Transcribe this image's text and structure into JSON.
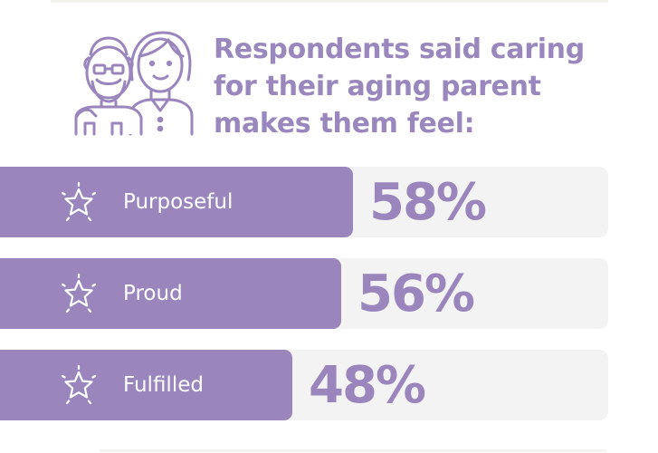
{
  "colors": {
    "accent": "#9a86bd",
    "track": "#f3f3f3",
    "label_text": "#ffffff"
  },
  "header": {
    "illustration_icon": "elderly-parent-and-adult-child-icon",
    "title_lines": [
      "Respondents said caring",
      "for their aging parent",
      "makes them feel:"
    ]
  },
  "chart_data": {
    "type": "bar",
    "orientation": "horizontal",
    "categories": [
      "Purposeful",
      "Proud",
      "Fulfilled"
    ],
    "values": [
      58,
      56,
      48
    ],
    "value_labels": [
      "58%",
      "56%",
      "48%"
    ],
    "unit": "%",
    "category_icon": "star-icon",
    "title": "Respondents said caring for their aging parent makes them feel:",
    "xlim": [
      0,
      100
    ],
    "grid": false
  }
}
